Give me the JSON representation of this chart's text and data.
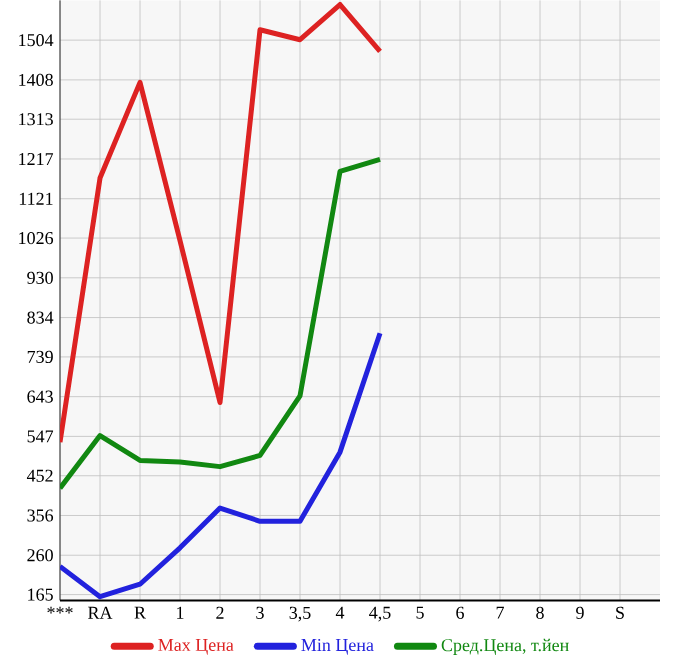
{
  "chart_data": {
    "type": "line",
    "categories": [
      "***",
      "RA",
      "R",
      "1",
      "2",
      "3",
      "3,5",
      "4",
      "4,5",
      "5",
      "6",
      "7",
      "8",
      "9",
      "S"
    ],
    "series": [
      {
        "name": "Max Цена",
        "color": "#dd2222",
        "values": [
          533,
          1171,
          1402,
          1020,
          629,
          1529,
          1505,
          1590,
          1477,
          null,
          null,
          null,
          null,
          null,
          null
        ]
      },
      {
        "name": "Min Цена",
        "color": "#2222dd",
        "values": [
          233,
          160,
          190,
          278,
          374,
          342,
          342,
          509,
          796,
          null,
          null,
          null,
          null,
          null,
          null
        ]
      },
      {
        "name": "Сред.Цена, т.йен",
        "color": "#118811",
        "values": [
          422,
          549,
          489,
          485,
          474,
          501,
          645,
          1187,
          1216,
          null,
          null,
          null,
          null,
          null,
          null
        ]
      }
    ],
    "ylim": [
      151,
      1600
    ],
    "yticks": [
      165,
      260,
      356,
      452,
      547,
      643,
      739,
      834,
      930,
      1026,
      1121,
      1217,
      1313,
      1408,
      1504
    ],
    "grid": true,
    "legend": "bottom",
    "line_style": "solid",
    "marker": "none"
  }
}
